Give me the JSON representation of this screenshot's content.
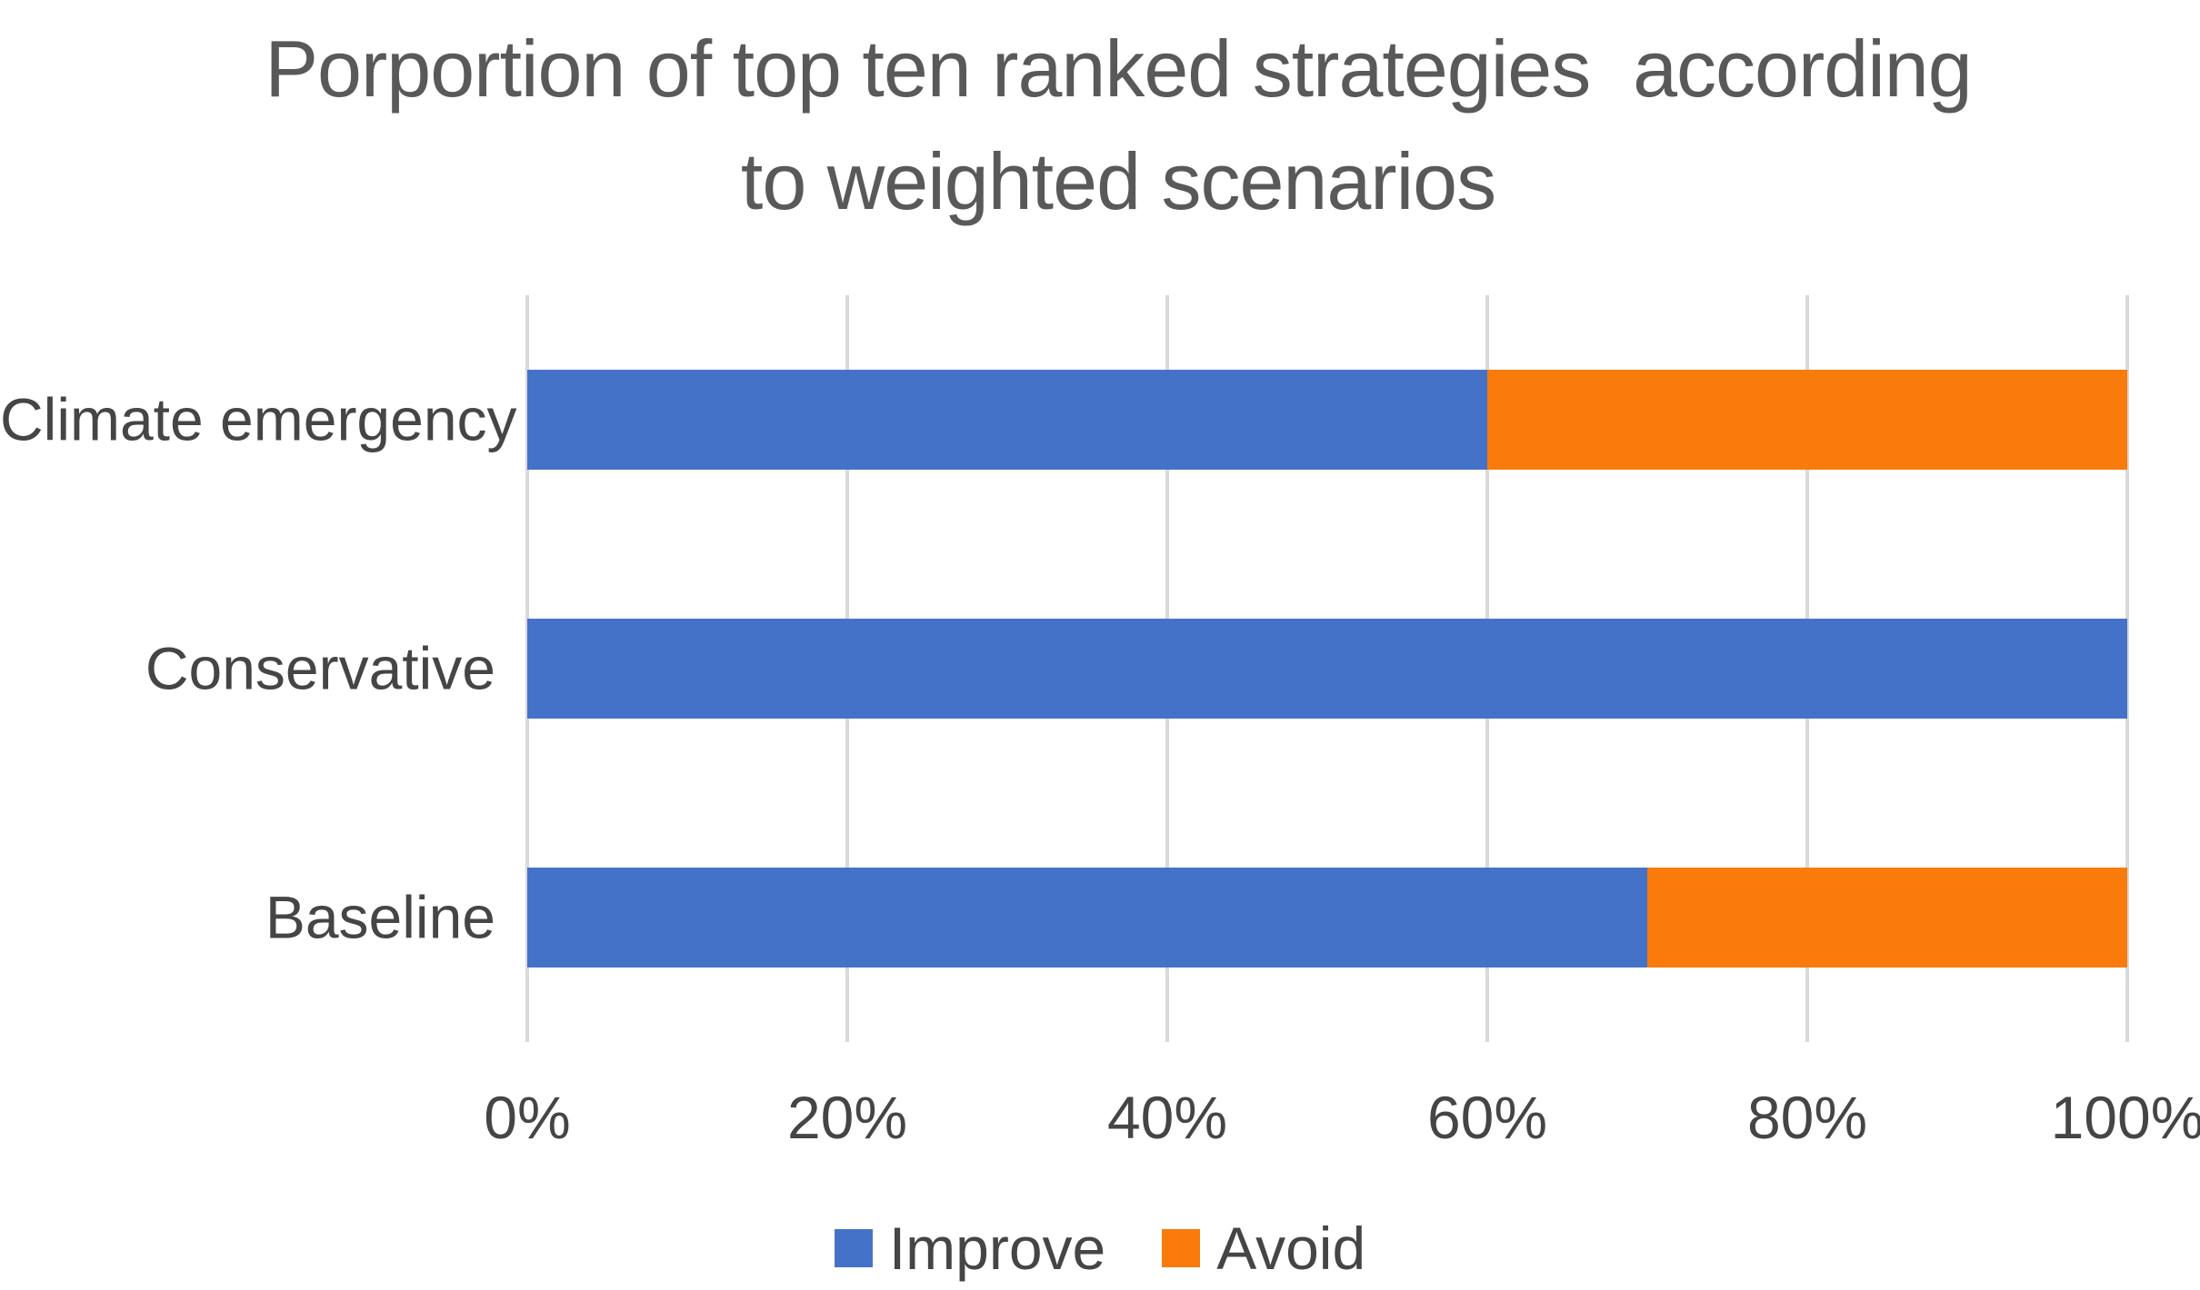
{
  "chart_data": {
    "type": "bar",
    "orientation": "horizontal",
    "stacked": true,
    "title": "Porportion of top ten ranked strategies  according to weighted scenarios",
    "title_lines": [
      "Porportion of top ten ranked strategies  according",
      "to weighted scenarios"
    ],
    "categories": [
      "Climate emergency",
      "Conservative",
      "Baseline"
    ],
    "series": [
      {
        "name": "Improve",
        "color": "#4472C8",
        "values": [
          60,
          100,
          70
        ]
      },
      {
        "name": "Avoid",
        "color": "#F87B0B",
        "values": [
          40,
          0,
          30
        ]
      }
    ],
    "xlabel": "",
    "ylabel": "",
    "xlim": [
      0,
      100
    ],
    "xticks": [
      0,
      20,
      40,
      60,
      80,
      100
    ],
    "xtick_labels": [
      "0%",
      "20%",
      "40%",
      "60%",
      "80%",
      "100%"
    ],
    "grid": "vertical",
    "gridline_color": "#D9D9D9",
    "legend_position": "bottom",
    "colors": {
      "title_text": "#595959",
      "axis_text": "#454545",
      "background": "#ffffff"
    }
  }
}
